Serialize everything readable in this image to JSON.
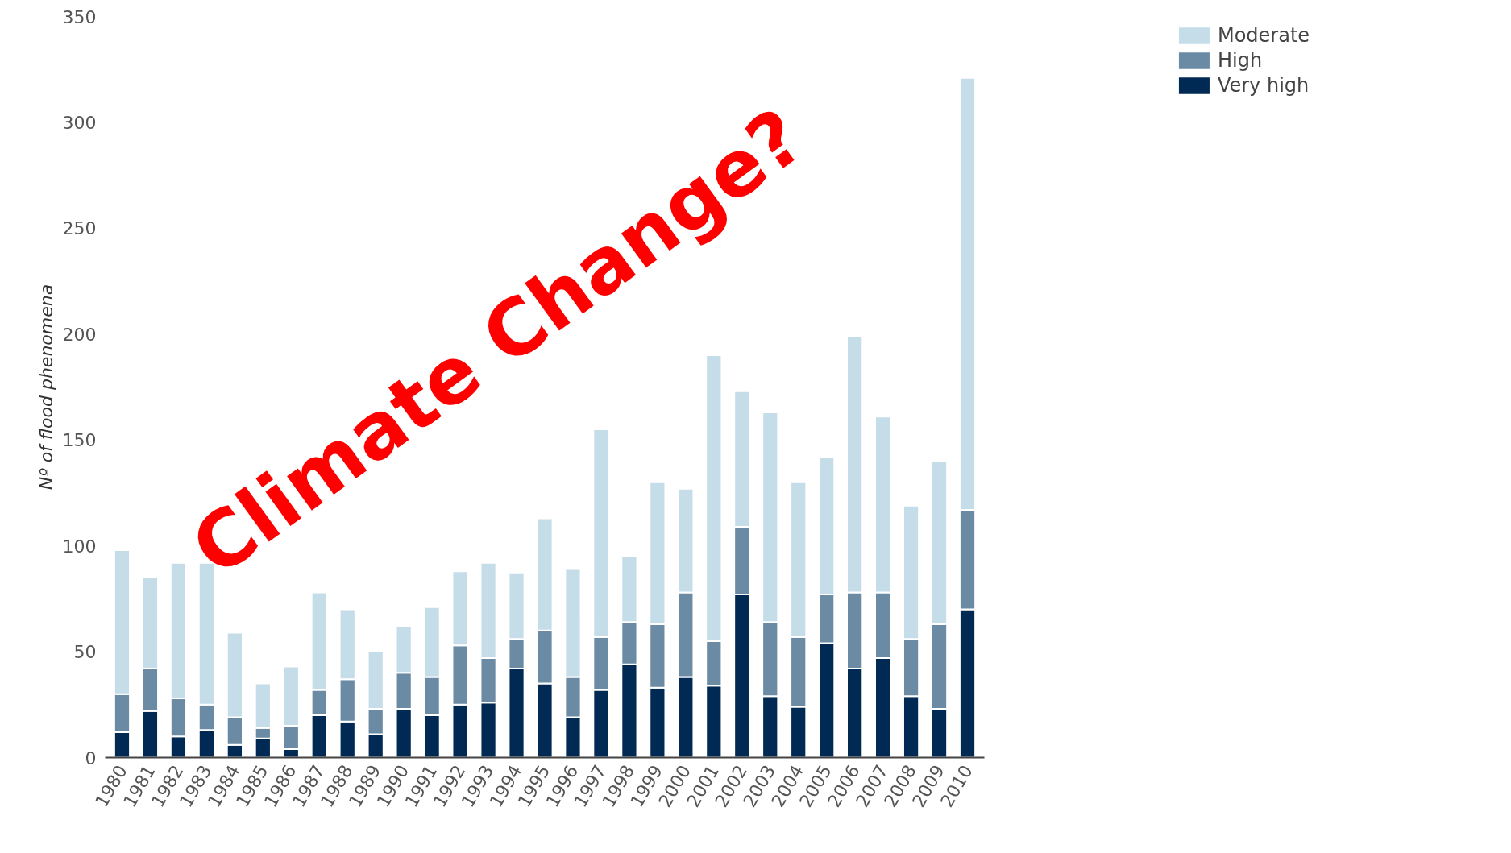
{
  "chart_data": {
    "type": "bar",
    "stacked": true,
    "ylabel": "Nº of flood phenomena",
    "categories": [
      "1980",
      "1981",
      "1982",
      "1983",
      "1984",
      "1985",
      "1986",
      "1987",
      "1988",
      "1989",
      "1990",
      "1991",
      "1992",
      "1993",
      "1994",
      "1995",
      "1996",
      "1997",
      "1998",
      "1999",
      "2000",
      "2001",
      "2002",
      "2003",
      "2004",
      "2005",
      "2006",
      "2007",
      "2008",
      "2009",
      "2010"
    ],
    "series": [
      {
        "name": "Very high",
        "color": "#002a54",
        "values": [
          12,
          22,
          10,
          13,
          6,
          9,
          4,
          20,
          17,
          11,
          23,
          20,
          25,
          26,
          42,
          35,
          19,
          32,
          44,
          33,
          38,
          34,
          77,
          29,
          24,
          54,
          42,
          47,
          29,
          23,
          70
        ]
      },
      {
        "name": "High",
        "color": "#6b8aa3",
        "values": [
          18,
          20,
          18,
          12,
          13,
          5,
          11,
          12,
          20,
          12,
          17,
          18,
          28,
          21,
          14,
          25,
          19,
          25,
          20,
          30,
          40,
          21,
          32,
          35,
          33,
          23,
          36,
          31,
          27,
          40,
          47
        ]
      },
      {
        "name": "Moderate",
        "color": "#c5dde8",
        "values": [
          68,
          43,
          64,
          67,
          40,
          21,
          28,
          46,
          33,
          27,
          22,
          33,
          35,
          45,
          31,
          53,
          51,
          98,
          31,
          67,
          49,
          135,
          64,
          99,
          73,
          65,
          121,
          83,
          63,
          77,
          204
        ]
      }
    ],
    "ylim": [
      0,
      350
    ],
    "yticks": [
      0,
      50,
      100,
      150,
      200,
      250,
      300,
      350
    ],
    "grid": false,
    "legend": "top right",
    "annotations": [
      "Climate Change?"
    ]
  }
}
